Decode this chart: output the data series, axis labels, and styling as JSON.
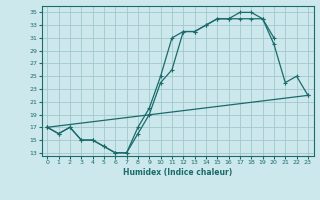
{
  "xlabel": "Humidex (Indice chaleur)",
  "bg_color": "#cce8ec",
  "grid_color": "#a0c8cc",
  "line_color": "#1a6b6b",
  "xlim": [
    -0.5,
    23.5
  ],
  "ylim": [
    12.5,
    36
  ],
  "yticks": [
    13,
    15,
    17,
    19,
    21,
    23,
    25,
    27,
    29,
    31,
    33,
    35
  ],
  "xticks": [
    0,
    1,
    2,
    3,
    4,
    5,
    6,
    7,
    8,
    9,
    10,
    11,
    12,
    13,
    14,
    15,
    16,
    17,
    18,
    19,
    20,
    21,
    22,
    23
  ],
  "line1_x": [
    0,
    1,
    2,
    3,
    4,
    5,
    6,
    7,
    8,
    9,
    10,
    11,
    12,
    13,
    14,
    15,
    16,
    17,
    18,
    19,
    20
  ],
  "line1_y": [
    17,
    16,
    17,
    15,
    15,
    14,
    13,
    13,
    17,
    20,
    25,
    31,
    32,
    32,
    33,
    34,
    34,
    35,
    35,
    34,
    31
  ],
  "line2_x": [
    0,
    1,
    2,
    3,
    4,
    5,
    6,
    7,
    8,
    9,
    10,
    11,
    12,
    13,
    14,
    15,
    16,
    17,
    18,
    19,
    20,
    21,
    22,
    23
  ],
  "line2_y": [
    17,
    16,
    17,
    15,
    15,
    14,
    13,
    13,
    16,
    19,
    24,
    26,
    32,
    32,
    33,
    34,
    34,
    34,
    34,
    34,
    30,
    24,
    25,
    22
  ],
  "line3_x": [
    0,
    23
  ],
  "line3_y": [
    17,
    22
  ]
}
